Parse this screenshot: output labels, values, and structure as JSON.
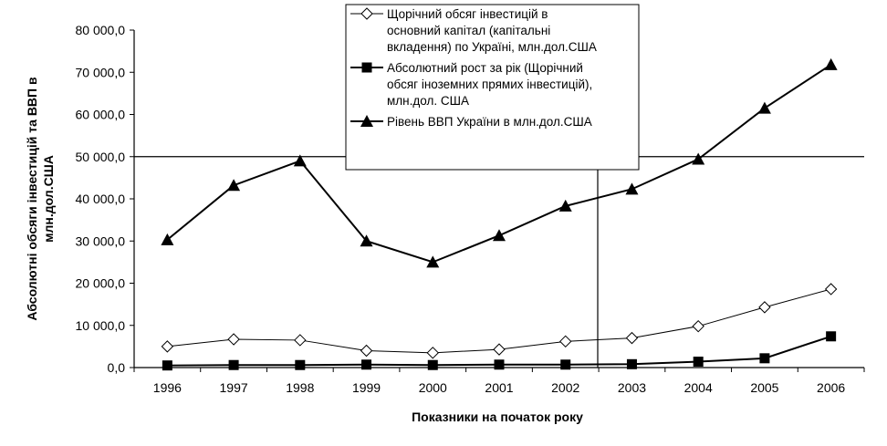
{
  "chart_data": {
    "type": "line",
    "categories": [
      "1996",
      "1997",
      "1998",
      "1999",
      "2000",
      "2001",
      "2002",
      "2003",
      "2004",
      "2005",
      "2006"
    ],
    "ylim": [
      0,
      80000
    ],
    "yticks": [
      "0,0",
      "10 000,0",
      "20 000,0",
      "30 000,0",
      "40 000,0",
      "50 000,0",
      "60 000,0",
      "70 000,0",
      "80 000,0"
    ],
    "xlabel": "Показники на початок року",
    "ylabel_lines": [
      "Абсолютні обсяги інвестицій та ВВП в",
      "млн.дол.США"
    ],
    "grid": "horizontal line at 50 000,0 only",
    "legend_position": "top-center",
    "series": [
      {
        "name_lines": [
          "Щорічний обсяг інвестицій в",
          "основний капітал (капітальні",
          "вкладення) по Україні, млн.дол.США"
        ],
        "marker": "diamond-open",
        "values": [
          5000,
          6700,
          6500,
          4000,
          3500,
          4300,
          6200,
          7000,
          9800,
          14300,
          18600
        ]
      },
      {
        "name_lines": [
          "Абсолютний рост за рік (Щорічний",
          "обсяг іноземних прямих інвестицій),",
          "млн.дол. США"
        ],
        "marker": "square-filled",
        "values": [
          500,
          600,
          600,
          700,
          600,
          700,
          700,
          800,
          1400,
          2200,
          7400
        ]
      },
      {
        "name_lines": [
          "Рівень ВВП України в млн.дол.США"
        ],
        "marker": "triangle-filled",
        "values": [
          30300,
          43200,
          49000,
          30000,
          25000,
          31300,
          38300,
          42300,
          49400,
          61500,
          71800
        ]
      }
    ]
  }
}
